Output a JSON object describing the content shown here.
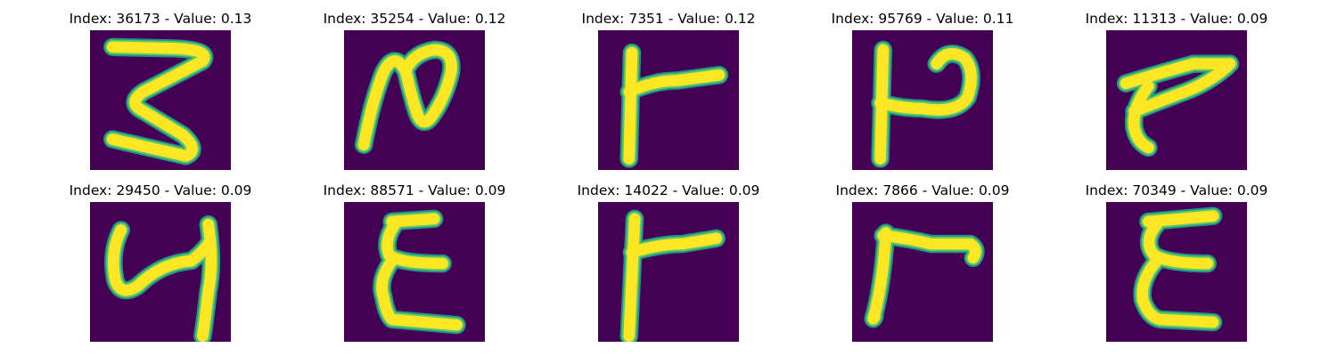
{
  "colors": {
    "background": "#440154",
    "stroke_core": "#fde725",
    "stroke_mid": "#5ec962",
    "stroke_edge": "#21918c"
  },
  "panels": [
    {
      "title": "Index: 36173 - Value: 0.13",
      "index": 36173,
      "value": 0.13
    },
    {
      "title": "Index: 35254 - Value: 0.12",
      "index": 35254,
      "value": 0.12
    },
    {
      "title": "Index: 7351 - Value: 0.12",
      "index": 7351,
      "value": 0.12
    },
    {
      "title": "Index: 95769 - Value: 0.11",
      "index": 95769,
      "value": 0.11
    },
    {
      "title": "Index: 11313 - Value: 0.09",
      "index": 11313,
      "value": 0.09
    },
    {
      "title": "Index: 29450 - Value: 0.09",
      "index": 29450,
      "value": 0.09
    },
    {
      "title": "Index: 88571 - Value: 0.09",
      "index": 88571,
      "value": 0.09
    },
    {
      "title": "Index: 14022 - Value: 0.09",
      "index": 14022,
      "value": 0.09
    },
    {
      "title": "Index: 7866 - Value: 0.09",
      "index": 7866,
      "value": 0.09
    },
    {
      "title": "Index: 70349 - Value: 0.09",
      "index": 70349,
      "value": 0.09
    }
  ]
}
